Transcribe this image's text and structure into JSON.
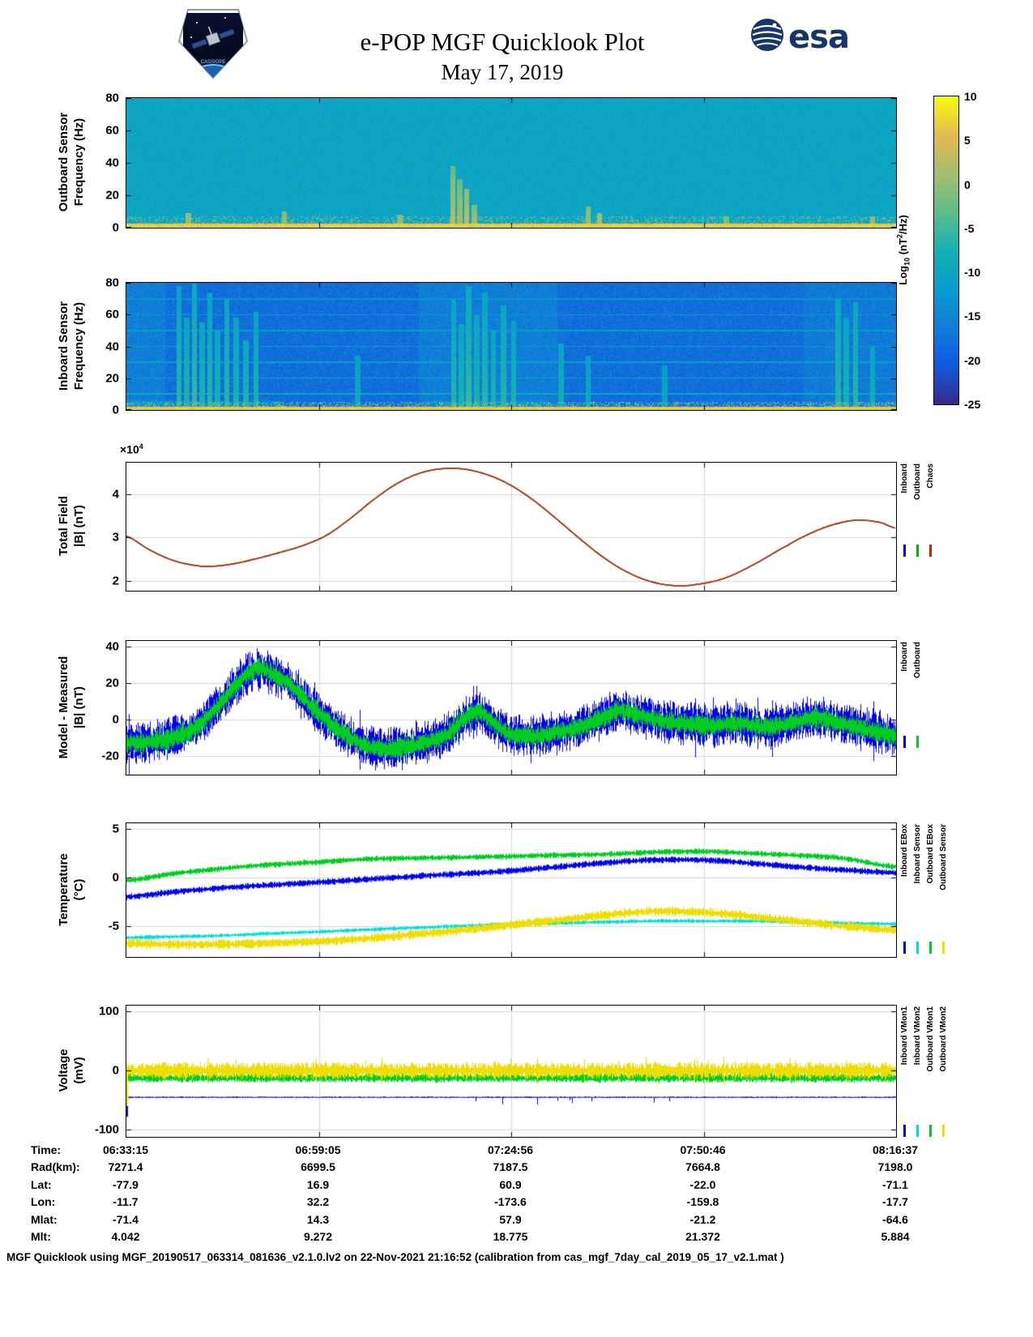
{
  "header": {
    "title": "e-POP MGF Quicklook Plot",
    "date": "May 17, 2019",
    "esa_text": "esa",
    "cassiope_text": "CASSIOPE"
  },
  "colors": {
    "inboard_blue": "#0000ee",
    "outboard_green": "#00b400",
    "chaos_red": "#d02000",
    "sensor_cyan": "#00dddd",
    "sensor_yellow": "#eedd00",
    "esa_blue": "#16366b",
    "grid_gray": "#d6d6d6"
  },
  "colorbar": {
    "label": {
      "pre": "Log",
      "sub": "10",
      "mid": " (nT",
      "sup": "2",
      "post": "/Hz)"
    },
    "ticks": [
      10,
      5,
      0,
      -5,
      -10,
      -15,
      -20,
      -25
    ],
    "range": [
      -25,
      10
    ]
  },
  "panels": {
    "outboard_spect": {
      "l1": "Outboard Sensor",
      "l2": "Frequency (Hz)"
    },
    "inboard_spect": {
      "l1": "Inboard Sensor",
      "l2": "Frequency (Hz)"
    },
    "total_field": {
      "l1": "Total Field",
      "l2": "|B| (nT)",
      "mult_base": "×10",
      "mult_exp": "4"
    },
    "model_measured": {
      "l1": "Model - Measured",
      "l2": "|B| (nT)"
    },
    "temperature": {
      "l1": "Temperature",
      "l2": "(°C)"
    },
    "voltage": {
      "l1": "Voltage",
      "l2": "(mV)"
    }
  },
  "chart_data": [
    {
      "id": "outboard_spect",
      "type": "heatmap",
      "seed": 101,
      "ylim": [
        0,
        80
      ],
      "yticks": [
        0,
        20,
        40,
        60,
        80
      ],
      "value_range": [
        -25,
        10
      ],
      "base": -10,
      "noise": 1.8,
      "vfade": 0.15,
      "features": {
        "bottom_band": {
          "fmax": 2.4,
          "value": 7
        },
        "speckle": {
          "fmax": 7,
          "density": 0.15,
          "value": 2
        },
        "bands": [],
        "hlines": [],
        "blobs": [],
        "vlines": [
          {
            "x": 0.424,
            "fmax": 38,
            "value": 3
          },
          {
            "x": 0.433,
            "fmax": 30,
            "value": 2
          },
          {
            "x": 0.442,
            "fmax": 24,
            "value": 3
          },
          {
            "x": 0.452,
            "fmax": 14,
            "value": 1
          },
          {
            "x": 0.08,
            "fmax": 9,
            "value": 1
          },
          {
            "x": 0.205,
            "fmax": 10,
            "value": 1
          },
          {
            "x": 0.355,
            "fmax": 8,
            "value": 0
          },
          {
            "x": 0.6,
            "fmax": 13,
            "value": 1
          },
          {
            "x": 0.615,
            "fmax": 9,
            "value": 2
          },
          {
            "x": 0.78,
            "fmax": 7,
            "value": 0
          },
          {
            "x": 0.97,
            "fmax": 7,
            "value": 1
          }
        ]
      }
    },
    {
      "id": "inboard_spect",
      "type": "heatmap",
      "seed": 202,
      "ylim": [
        0,
        80
      ],
      "yticks": [
        0,
        20,
        40,
        60,
        80
      ],
      "value_range": [
        -25,
        10
      ],
      "base": -18,
      "noise": 2.5,
      "vfade": 0.06,
      "features": {
        "bottom_band": {
          "fmax": 2,
          "value": 6.5
        },
        "speckle": {
          "fmax": 5,
          "density": 0.3,
          "value": -1
        },
        "bands": [
          {
            "x0": 0.38,
            "x1": 0.56,
            "delta": 2
          },
          {
            "x0": 0,
            "x1": 0.05,
            "delta": 2
          },
          {
            "x0": 0.88,
            "x1": 1,
            "delta": 1.5
          }
        ],
        "hlines": [
          {
            "f": 10,
            "v": -10
          },
          {
            "f": 20,
            "v": -11
          },
          {
            "f": 30,
            "v": -11
          },
          {
            "f": 40,
            "v": -12
          },
          {
            "f": 50,
            "v": -12
          },
          {
            "f": 60,
            "v": -13
          },
          {
            "f": 70,
            "v": -13
          }
        ],
        "blobs": [
          {
            "x0": 0,
            "x1": 0.2,
            "fmax": 6,
            "delta": 5
          },
          {
            "x0": 0.4,
            "x1": 0.55,
            "fmax": 6,
            "delta": 4
          }
        ],
        "vlines": [
          {
            "x": 0.068,
            "fmax": 78,
            "value": -6
          },
          {
            "x": 0.078,
            "fmax": 58,
            "value": -7
          },
          {
            "x": 0.088,
            "fmax": 80,
            "value": -5
          },
          {
            "x": 0.098,
            "fmax": 55,
            "value": -7
          },
          {
            "x": 0.108,
            "fmax": 74,
            "value": -6
          },
          {
            "x": 0.118,
            "fmax": 50,
            "value": -7
          },
          {
            "x": 0.13,
            "fmax": 70,
            "value": -6
          },
          {
            "x": 0.142,
            "fmax": 58,
            "value": -7
          },
          {
            "x": 0.155,
            "fmax": 44,
            "value": -7
          },
          {
            "x": 0.168,
            "fmax": 62,
            "value": -7
          },
          {
            "x": 0.425,
            "fmax": 70,
            "value": -6
          },
          {
            "x": 0.435,
            "fmax": 54,
            "value": -7
          },
          {
            "x": 0.445,
            "fmax": 78,
            "value": -5
          },
          {
            "x": 0.455,
            "fmax": 60,
            "value": -7
          },
          {
            "x": 0.466,
            "fmax": 74,
            "value": -6
          },
          {
            "x": 0.477,
            "fmax": 50,
            "value": -7
          },
          {
            "x": 0.49,
            "fmax": 66,
            "value": -6
          },
          {
            "x": 0.503,
            "fmax": 56,
            "value": -7
          },
          {
            "x": 0.3,
            "fmax": 34,
            "value": -9
          },
          {
            "x": 0.565,
            "fmax": 42,
            "value": -8
          },
          {
            "x": 0.6,
            "fmax": 34,
            "value": -9
          },
          {
            "x": 0.7,
            "fmax": 28,
            "value": -10
          },
          {
            "x": 0.925,
            "fmax": 70,
            "value": -6
          },
          {
            "x": 0.936,
            "fmax": 58,
            "value": -7
          },
          {
            "x": 0.948,
            "fmax": 68,
            "value": -6
          },
          {
            "x": 0.97,
            "fmax": 40,
            "value": -8
          }
        ]
      }
    },
    {
      "id": "total_field",
      "type": "line",
      "seed": 303,
      "ylim": [
        1.78,
        4.72
      ],
      "yticks": [
        2,
        3,
        4
      ],
      "unit_multiplier": "1e4",
      "x": [
        0,
        0.03,
        0.06,
        0.09,
        0.11,
        0.14,
        0.17,
        0.2,
        0.23,
        0.26,
        0.29,
        0.32,
        0.35,
        0.38,
        0.41,
        0.44,
        0.47,
        0.5,
        0.53,
        0.56,
        0.59,
        0.62,
        0.65,
        0.68,
        0.71,
        0.74,
        0.78,
        0.82,
        0.86,
        0.89,
        0.92,
        0.95,
        0.98,
        1
      ],
      "values": [
        3.03,
        2.72,
        2.48,
        2.36,
        2.34,
        2.4,
        2.52,
        2.66,
        2.82,
        3.05,
        3.42,
        3.85,
        4.22,
        4.47,
        4.58,
        4.57,
        4.44,
        4.2,
        3.85,
        3.42,
        2.97,
        2.55,
        2.22,
        2.0,
        1.9,
        1.92,
        2.08,
        2.42,
        2.82,
        3.1,
        3.3,
        3.4,
        3.35,
        3.22
      ],
      "series": [
        {
          "name": "Inboard",
          "color": "#0000ee"
        },
        {
          "name": "Outboard",
          "color": "#00b400"
        },
        {
          "name": "Chaos",
          "color": "#d02000"
        }
      ]
    },
    {
      "id": "model_measured",
      "type": "line",
      "seed": 404,
      "ylim": [
        -30,
        43
      ],
      "yticks": [
        -20,
        0,
        20,
        40
      ],
      "x": [
        0,
        0.03,
        0.06,
        0.09,
        0.12,
        0.15,
        0.17,
        0.19,
        0.21,
        0.23,
        0.25,
        0.28,
        0.31,
        0.34,
        0.37,
        0.4,
        0.42,
        0.44,
        0.46,
        0.48,
        0.5,
        0.53,
        0.56,
        0.59,
        0.62,
        0.64,
        0.66,
        0.69,
        0.72,
        0.76,
        0.8,
        0.83,
        0.86,
        0.88,
        0.9,
        0.92,
        0.95,
        0.98,
        1
      ],
      "center": [
        -13,
        -12,
        -10,
        -4,
        8,
        22,
        28,
        25,
        20,
        12,
        3,
        -7,
        -14,
        -16,
        -14,
        -11,
        -7,
        1,
        4,
        -3,
        -8,
        -9,
        -7,
        -4,
        1,
        5,
        3,
        0,
        -2,
        -3,
        -2,
        -4,
        -2,
        0,
        1,
        -1,
        -4,
        -7,
        -9
      ],
      "series": [
        {
          "name": "Inboard",
          "color": "#0000ee",
          "amp": 7.5,
          "noisy": true
        },
        {
          "name": "Outboard",
          "color": "#00cc22",
          "amp": 3.8,
          "noisy": true
        }
      ]
    },
    {
      "id": "temperature",
      "type": "line",
      "seed": 505,
      "ylim": [
        -8.2,
        5.6
      ],
      "yticks": [
        -5,
        0,
        5
      ],
      "x": [
        0,
        0.06,
        0.12,
        0.18,
        0.25,
        0.31,
        0.37,
        0.44,
        0.5,
        0.56,
        0.62,
        0.68,
        0.75,
        0.81,
        0.87,
        0.93,
        1
      ],
      "series": [
        {
          "name": "Inboard EBox",
          "color": "#0000ee",
          "amp": 0.22,
          "values": [
            -2.0,
            -1.5,
            -1.1,
            -0.8,
            -0.5,
            -0.2,
            0.1,
            0.4,
            0.7,
            1.1,
            1.5,
            1.8,
            1.8,
            1.5,
            1.1,
            0.8,
            0.5
          ]
        },
        {
          "name": "Inboard Sensor",
          "color": "#00dddd",
          "amp": 0.14,
          "values": [
            -6.2,
            -6.1,
            -6.0,
            -5.8,
            -5.6,
            -5.4,
            -5.2,
            -5.0,
            -4.8,
            -4.7,
            -4.6,
            -4.5,
            -4.5,
            -4.5,
            -4.6,
            -4.7,
            -4.8
          ]
        },
        {
          "name": "Outboard EBox",
          "color": "#00cc22",
          "amp": 0.2,
          "values": [
            -0.3,
            0.4,
            0.9,
            1.3,
            1.6,
            1.9,
            2.0,
            2.1,
            2.2,
            2.3,
            2.4,
            2.6,
            2.7,
            2.5,
            2.3,
            2.0,
            1.1
          ]
        },
        {
          "name": "Outboard Sensor",
          "color": "#eedd00",
          "amp": 0.32,
          "values": [
            -6.8,
            -6.9,
            -6.9,
            -6.8,
            -6.6,
            -6.3,
            -5.9,
            -5.4,
            -4.9,
            -4.4,
            -3.9,
            -3.5,
            -3.6,
            -4.0,
            -4.5,
            -5.0,
            -5.4
          ]
        }
      ]
    },
    {
      "id": "voltage",
      "type": "line",
      "seed": 606,
      "ylim": [
        -112,
        110
      ],
      "yticks": [
        -100,
        0,
        100
      ],
      "series": [
        {
          "name": "Inboard VMon1",
          "color": "#0000ee",
          "base": -45,
          "amp": 0.8,
          "dips": {
            "prob": 0.03,
            "amp": 11,
            "x0": 0.42,
            "x1": 0.78
          },
          "left_transient": -78
        },
        {
          "name": "Inboard VMon2",
          "color": "#00dddd",
          "base": -14,
          "amp": 2
        },
        {
          "name": "Outboard VMon1",
          "color": "#00cc22",
          "base": -12,
          "amp": 5,
          "spike_prob": 0.02,
          "spike_amp": 6
        },
        {
          "name": "Outboard VMon2",
          "color": "#eedd00",
          "base": 0,
          "amp": 9,
          "spike_prob": 0.07,
          "spike_amp": 12,
          "left_transient": -60
        }
      ]
    }
  ],
  "table": {
    "rows": [
      {
        "label": "Time:",
        "values": [
          "06:33:15",
          "06:59:05",
          "07:24:56",
          "07:50:46",
          "08:16:37"
        ]
      },
      {
        "label": "Rad(km):",
        "values": [
          "7271.4",
          "6699.5",
          "7187.5",
          "7664.8",
          "7198.0"
        ]
      },
      {
        "label": "Lat:",
        "values": [
          "-77.9",
          "16.9",
          "60.9",
          "-22.0",
          "-71.1"
        ]
      },
      {
        "label": "Lon:",
        "values": [
          "-11.7",
          "32.2",
          "-173.6",
          "-159.8",
          "-17.7"
        ]
      },
      {
        "label": "Mlat:",
        "values": [
          "-71.4",
          "14.3",
          "57.9",
          "-21.2",
          "-64.6"
        ]
      },
      {
        "label": "Mlt:",
        "values": [
          "4.042",
          "9.272",
          "18.775",
          "21.372",
          "5.884"
        ]
      }
    ]
  },
  "footer": {
    "text": "MGF Quicklook using MGF_20190517_063314_081636_v2.1.0.lv2 on 22-Nov-2021 21:16:52 (calibration from cas_mgf_7day_cal_2019_05_17_v2.1.mat )"
  }
}
